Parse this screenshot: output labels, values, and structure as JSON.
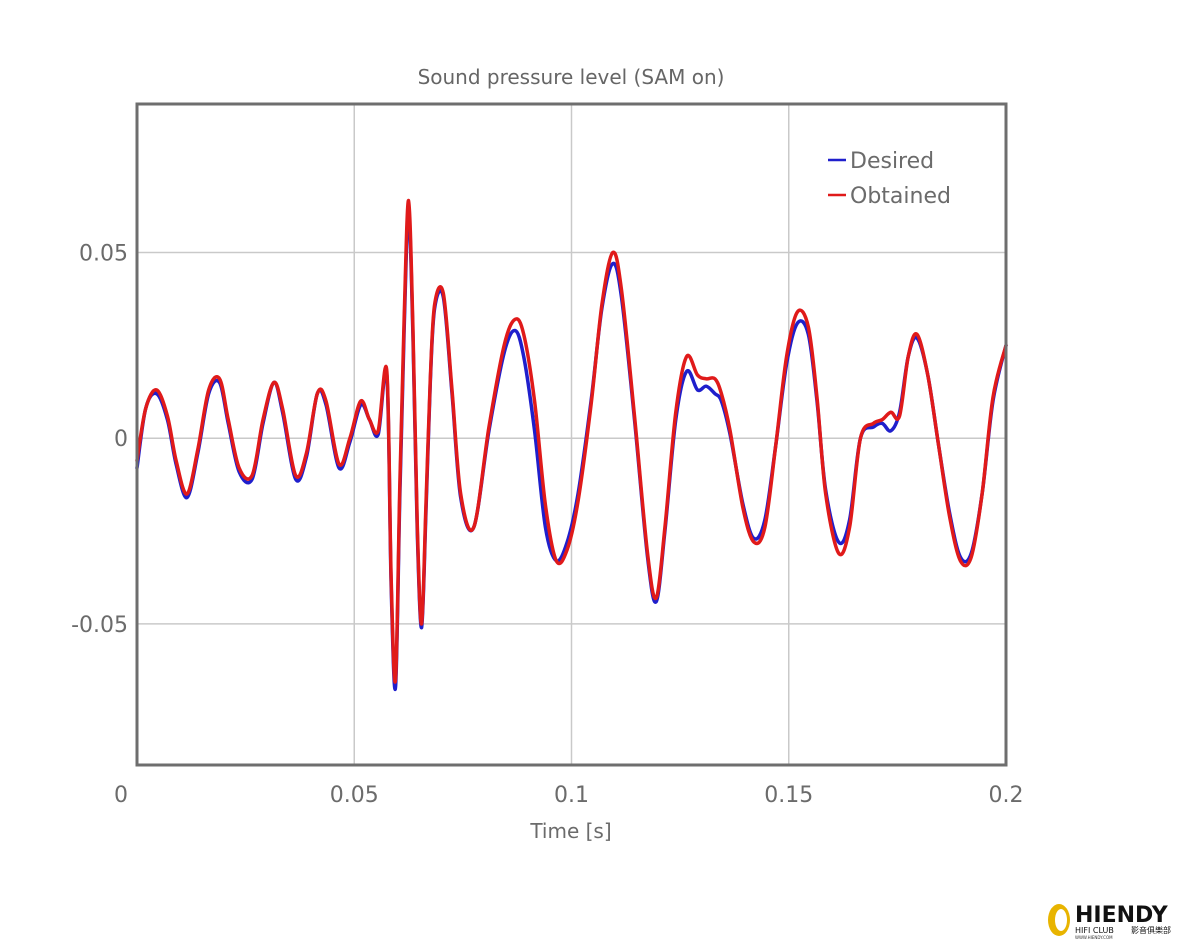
{
  "chart_data": {
    "type": "line",
    "title": "Sound pressure level (SAM on)",
    "xlabel": "Time [s]",
    "ylabel": "",
    "xlim": [
      0,
      0.2
    ],
    "ylim": [
      -0.088,
      0.09
    ],
    "xticks": [
      0,
      0.05,
      0.1,
      0.15,
      0.2
    ],
    "xtick_labels": [
      "0",
      "0.05",
      "0.1",
      "0.15",
      "0.2"
    ],
    "yticks": [
      -0.05,
      0,
      0.05
    ],
    "ytick_labels": [
      "-0.05",
      "0",
      "0.05"
    ],
    "grid": true,
    "legend_position": "top-right",
    "series": [
      {
        "name": "Desired",
        "color": "#1f1fcc",
        "x": [
          0,
          0.002,
          0.0045,
          0.007,
          0.009,
          0.0115,
          0.014,
          0.0165,
          0.019,
          0.021,
          0.0235,
          0.0265,
          0.029,
          0.0315,
          0.0335,
          0.0365,
          0.039,
          0.0415,
          0.0435,
          0.0465,
          0.049,
          0.0515,
          0.0535,
          0.0555,
          0.0575,
          0.0585,
          0.0595,
          0.0605,
          0.0615,
          0.0625,
          0.0635,
          0.0645,
          0.0655,
          0.0665,
          0.0675,
          0.0685,
          0.0705,
          0.0725,
          0.0745,
          0.0775,
          0.081,
          0.0845,
          0.087,
          0.089,
          0.0915,
          0.094,
          0.0965,
          0.099,
          0.1015,
          0.1045,
          0.107,
          0.1095,
          0.1115,
          0.1145,
          0.1175,
          0.1195,
          0.1215,
          0.124,
          0.1265,
          0.129,
          0.131,
          0.133,
          0.1345,
          0.1365,
          0.1395,
          0.142,
          0.1445,
          0.147,
          0.1495,
          0.152,
          0.1545,
          0.1565,
          0.1585,
          0.1615,
          0.164,
          0.1665,
          0.1695,
          0.1715,
          0.1735,
          0.1755,
          0.1775,
          0.1795,
          0.182,
          0.1845,
          0.187,
          0.1895,
          0.192,
          0.1945,
          0.197,
          0.2
        ],
        "y": [
          -0.008,
          0.008,
          0.012,
          0.005,
          -0.007,
          -0.016,
          -0.004,
          0.012,
          0.015,
          0.004,
          -0.009,
          -0.011,
          0.004,
          0.015,
          0.007,
          -0.011,
          -0.005,
          0.012,
          0.009,
          -0.008,
          -0.001,
          0.009,
          0.005,
          0.001,
          0.017,
          -0.04,
          -0.067,
          -0.015,
          0.03,
          0.061,
          0.028,
          -0.025,
          -0.051,
          -0.02,
          0.015,
          0.035,
          0.038,
          0.012,
          -0.016,
          -0.024,
          0.002,
          0.023,
          0.029,
          0.022,
          0.002,
          -0.024,
          -0.033,
          -0.028,
          -0.015,
          0.01,
          0.035,
          0.047,
          0.038,
          0.005,
          -0.032,
          -0.044,
          -0.025,
          0.005,
          0.018,
          0.013,
          0.014,
          0.012,
          0.01,
          0.001,
          -0.018,
          -0.027,
          -0.022,
          -0.002,
          0.02,
          0.031,
          0.028,
          0.01,
          -0.014,
          -0.028,
          -0.022,
          0.0,
          0.003,
          0.004,
          0.002,
          0.007,
          0.022,
          0.027,
          0.017,
          -0.002,
          -0.02,
          -0.032,
          -0.031,
          -0.015,
          0.01,
          0.025
        ]
      },
      {
        "name": "Obtained",
        "color": "#e01a1a",
        "x": [
          0,
          0.002,
          0.0045,
          0.007,
          0.009,
          0.0115,
          0.014,
          0.0165,
          0.019,
          0.021,
          0.0235,
          0.0265,
          0.029,
          0.0315,
          0.0335,
          0.0365,
          0.039,
          0.0415,
          0.0435,
          0.0465,
          0.049,
          0.0515,
          0.0535,
          0.0555,
          0.0575,
          0.0585,
          0.0595,
          0.0605,
          0.0615,
          0.0625,
          0.0635,
          0.0645,
          0.0655,
          0.0665,
          0.0675,
          0.0685,
          0.0705,
          0.0725,
          0.0745,
          0.0775,
          0.081,
          0.0845,
          0.087,
          0.089,
          0.0915,
          0.094,
          0.0965,
          0.099,
          0.1015,
          0.1045,
          0.107,
          0.1095,
          0.1115,
          0.1145,
          0.1175,
          0.1195,
          0.1215,
          0.124,
          0.1265,
          0.129,
          0.131,
          0.133,
          0.1345,
          0.1365,
          0.1395,
          0.142,
          0.1445,
          0.147,
          0.1495,
          0.152,
          0.1545,
          0.1565,
          0.1585,
          0.1615,
          0.164,
          0.1665,
          0.1695,
          0.1715,
          0.1735,
          0.1755,
          0.1775,
          0.1795,
          0.182,
          0.1845,
          0.187,
          0.1895,
          0.192,
          0.1945,
          0.197,
          0.2
        ],
        "y": [
          -0.006,
          0.008,
          0.013,
          0.006,
          -0.006,
          -0.015,
          -0.003,
          0.013,
          0.016,
          0.005,
          -0.008,
          -0.01,
          0.005,
          0.015,
          0.008,
          -0.01,
          -0.004,
          0.012,
          0.01,
          -0.007,
          0.0,
          0.01,
          0.005,
          0.002,
          0.018,
          -0.038,
          -0.065,
          -0.012,
          0.033,
          0.064,
          0.03,
          -0.023,
          -0.05,
          -0.018,
          0.016,
          0.036,
          0.039,
          0.013,
          -0.015,
          -0.024,
          0.003,
          0.025,
          0.032,
          0.028,
          0.01,
          -0.018,
          -0.033,
          -0.03,
          -0.017,
          0.009,
          0.036,
          0.05,
          0.04,
          0.006,
          -0.031,
          -0.043,
          -0.024,
          0.007,
          0.022,
          0.017,
          0.016,
          0.016,
          0.012,
          0.002,
          -0.019,
          -0.028,
          -0.024,
          -0.002,
          0.022,
          0.034,
          0.03,
          0.011,
          -0.015,
          -0.031,
          -0.024,
          0.0,
          0.004,
          0.005,
          0.007,
          0.006,
          0.022,
          0.028,
          0.017,
          -0.002,
          -0.021,
          -0.033,
          -0.032,
          -0.015,
          0.011,
          0.025
        ]
      }
    ]
  },
  "watermark": {
    "brand": "HIENDY",
    "subtitle": "HIFI CLUB",
    "site": "WWW.HIENDY.COM",
    "cjk": "影音俱樂部"
  }
}
